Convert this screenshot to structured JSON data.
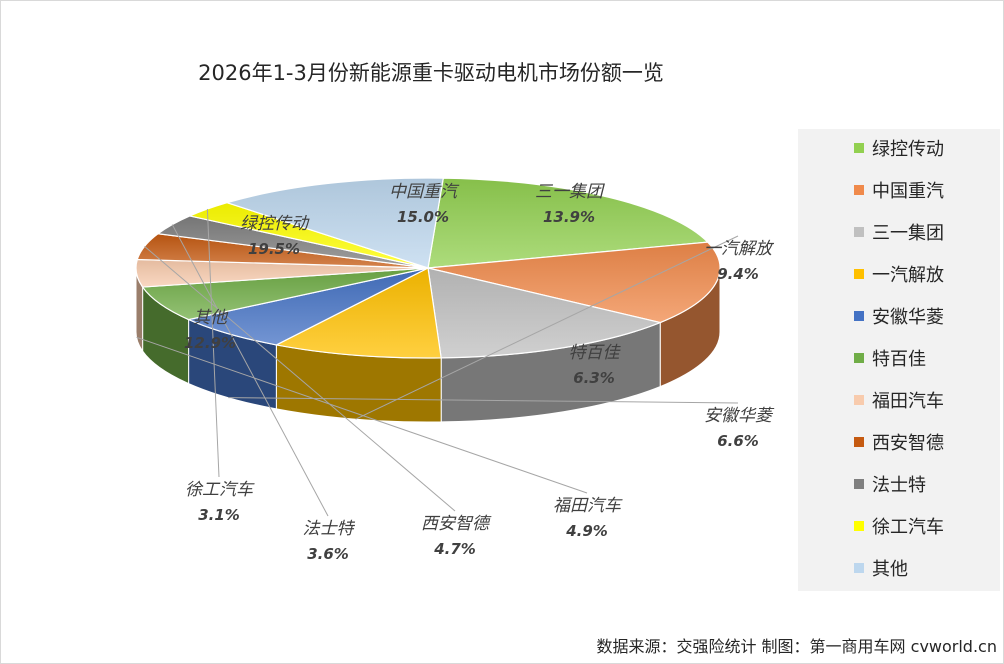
{
  "chart_data": {
    "type": "pie",
    "title": "2026年1-3月份新能源重卡驱动电机市场份额一览",
    "legend_position": "right",
    "slices": [
      {
        "name": "绿控传动",
        "value": 19.5,
        "label": "19.5%",
        "color": "#92d050"
      },
      {
        "name": "中国重汽",
        "value": 15.0,
        "label": "15.0%",
        "color": "#f08a4b"
      },
      {
        "name": "三一集团",
        "value": 13.9,
        "label": "13.9%",
        "color": "#c0c0c0"
      },
      {
        "name": "一汽解放",
        "value": 9.4,
        "label": "9.4%",
        "color": "#ffc000"
      },
      {
        "name": "安徽华菱",
        "value": 6.6,
        "label": "6.6%",
        "color": "#4472c4"
      },
      {
        "name": "特百佳",
        "value": 6.3,
        "label": "6.3%",
        "color": "#70ad47"
      },
      {
        "name": "福田汽车",
        "value": 4.9,
        "label": "4.9%",
        "color": "#f8cbad"
      },
      {
        "name": "西安智德",
        "value": 4.7,
        "label": "4.7%",
        "color": "#c55a11"
      },
      {
        "name": "法士特",
        "value": 3.6,
        "label": "3.6%",
        "color": "#7f7f7f"
      },
      {
        "name": "徐工汽车",
        "value": 3.1,
        "label": "3.1%",
        "color": "#ffff00"
      },
      {
        "name": "其他",
        "value": 12.9,
        "label": "12.9%",
        "color": "#bdd7ee"
      }
    ]
  },
  "source_text": "数据来源：交强险统计   制图：第一商用车网 cvworld.cn"
}
